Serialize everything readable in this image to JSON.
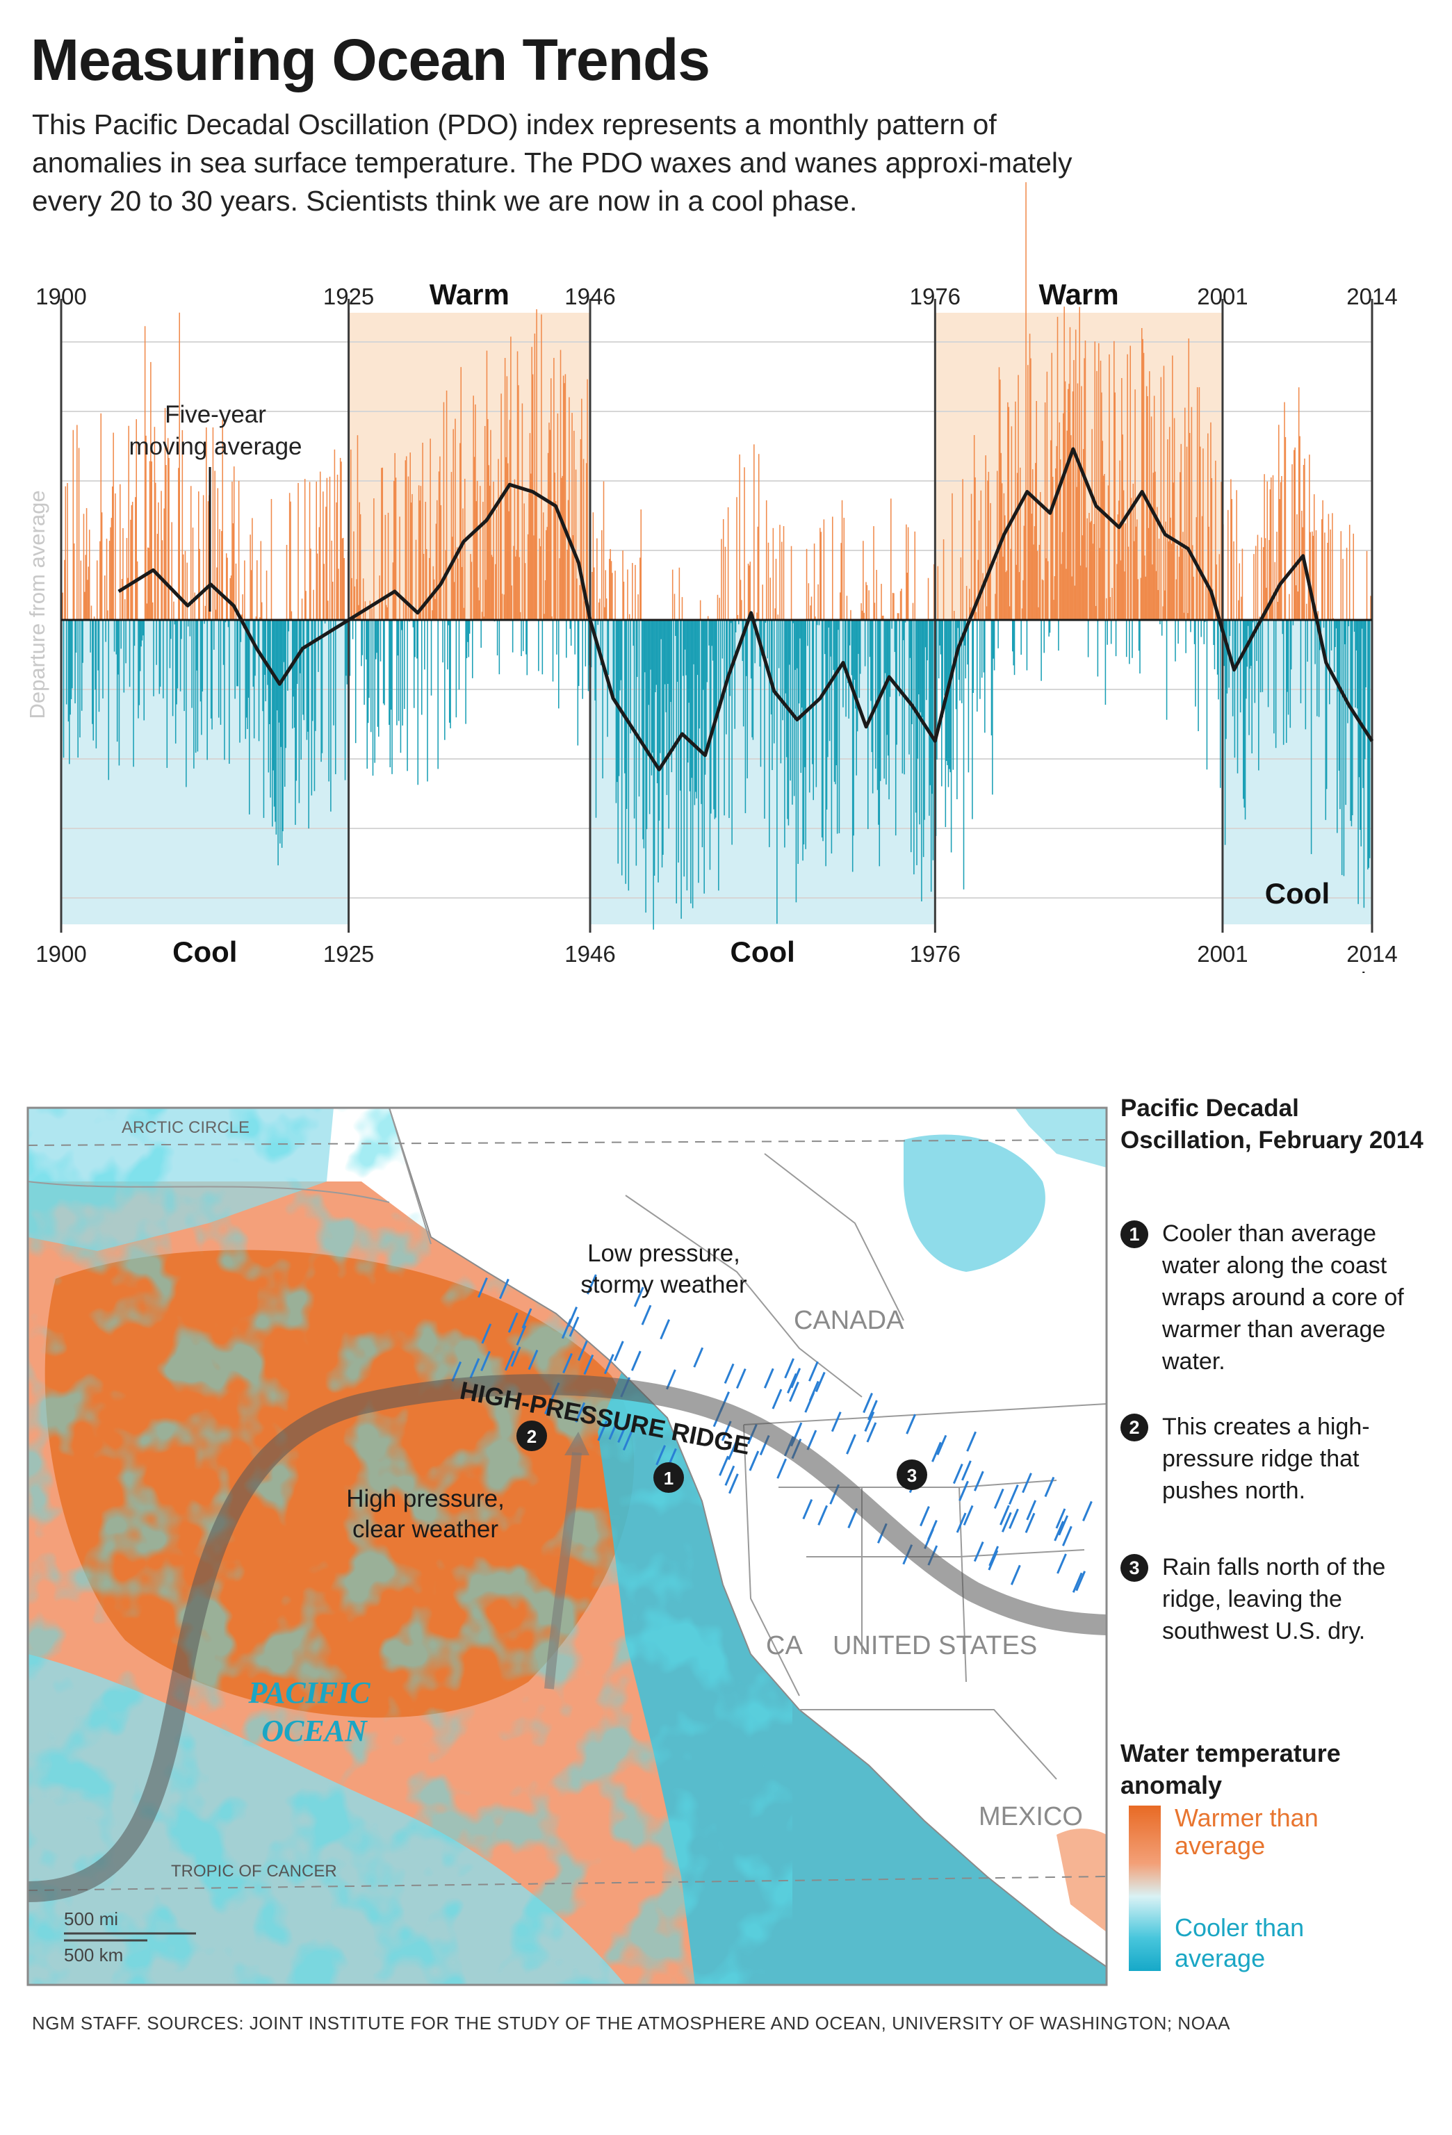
{
  "header": {
    "title": "Measuring Ocean Trends",
    "intro": "This Pacific Decadal Oscillation (PDO) index represents a monthly pattern of anomalies in sea surface temperature. The PDO waxes and wanes approxi-mately every 20 to 30 years. Scientists think we are now in a cool phase."
  },
  "chart_data": {
    "type": "bar",
    "title": "",
    "xlabel": "",
    "ylabel": "Departure from average",
    "x_range": [
      1900,
      2014
    ],
    "grid": true,
    "top_ticks": [
      "1900",
      "1925",
      "1946",
      "1976",
      "2001",
      "2014"
    ],
    "bottom_ticks": [
      "1900",
      "1925",
      "1946",
      "1976",
      "2001",
      "2014"
    ],
    "phases": [
      {
        "label": "Cool",
        "start": 1900,
        "end": 1925,
        "kind": "cool"
      },
      {
        "label": "Warm",
        "start": 1925,
        "end": 1946,
        "kind": "warm"
      },
      {
        "label": "Cool",
        "start": 1946,
        "end": 1976,
        "kind": "cool"
      },
      {
        "label": "Warm",
        "start": 1976,
        "end": 2001,
        "kind": "warm"
      },
      {
        "label": "Cool",
        "start": 2001,
        "end": 2014,
        "kind": "cool"
      }
    ],
    "annotation": "Five-year moving average",
    "annotation_year": 1912,
    "series": [
      {
        "name": "Five-year moving average",
        "x": [
          1905,
          1908,
          1911,
          1913,
          1915,
          1917,
          1919,
          1921,
          1923,
          1925,
          1927,
          1929,
          1931,
          1933,
          1935,
          1937,
          1939,
          1941,
          1943,
          1945,
          1946,
          1948,
          1950,
          1952,
          1954,
          1956,
          1958,
          1960,
          1962,
          1964,
          1966,
          1968,
          1970,
          1972,
          1974,
          1976,
          1978,
          1980,
          1982,
          1984,
          1986,
          1988,
          1990,
          1992,
          1994,
          1996,
          1998,
          2000,
          2002,
          2004,
          2006,
          2008,
          2010,
          2012,
          2014
        ],
        "y": [
          0.2,
          0.35,
          0.1,
          0.25,
          0.1,
          -0.2,
          -0.45,
          -0.2,
          -0.1,
          0.0,
          0.1,
          0.2,
          0.05,
          0.25,
          0.55,
          0.7,
          0.95,
          0.9,
          0.8,
          0.4,
          0.0,
          -0.55,
          -0.8,
          -1.05,
          -0.8,
          -0.95,
          -0.4,
          0.05,
          -0.5,
          -0.7,
          -0.55,
          -0.3,
          -0.75,
          -0.4,
          -0.6,
          -0.85,
          -0.2,
          0.2,
          0.6,
          0.9,
          0.75,
          1.2,
          0.8,
          0.65,
          0.9,
          0.6,
          0.5,
          0.2,
          -0.35,
          -0.05,
          0.25,
          0.45,
          -0.3,
          -0.6,
          -0.85
        ]
      }
    ]
  },
  "map": {
    "labels": {
      "arctic_circle": "ARCTIC CIRCLE",
      "tropic": "TROPIC OF CANCER",
      "canada": "CANADA",
      "us": "UNITED STATES",
      "ca": "CA",
      "mexico": "MEXICO",
      "pacific1": "PACIFIC",
      "pacific2": "OCEAN",
      "ridge": "HIGH-PRESSURE RIDGE",
      "low1": "Low pressure,",
      "low2": "stormy weather",
      "high1": "High pressure,",
      "high2": "clear weather",
      "scale_mi": "500 mi",
      "scale_km": "500 km"
    },
    "markers": [
      "1",
      "2",
      "3"
    ]
  },
  "sidebar": {
    "title": "Pacific Decadal Oscillation, February 2014",
    "notes": [
      {
        "num": "1",
        "text": "Cooler than average water along the coast wraps around a core of warmer than average water."
      },
      {
        "num": "2",
        "text": "This creates a high-pressure ridge that pushes north."
      },
      {
        "num": "3",
        "text": "Rain falls north of the ridge, leaving the southwest U.S. dry."
      }
    ]
  },
  "legend": {
    "title": "Water temperature anomaly",
    "warm": "Warmer than average",
    "cool": "Cooler than average",
    "warm_color": "#e8752f",
    "cool_color": "#1aa6c4"
  },
  "colors": {
    "warm_band": "#fbe6d2",
    "cool_band": "#d3eef4",
    "warm_bar": "#f08a4b",
    "cool_bar": "#1a9fb5"
  },
  "credit": "NGM STAFF.  SOURCES: JOINT INSTITUTE FOR THE STUDY OF THE ATMOSPHERE AND OCEAN, UNIVERSITY OF WASHINGTON; NOAA"
}
